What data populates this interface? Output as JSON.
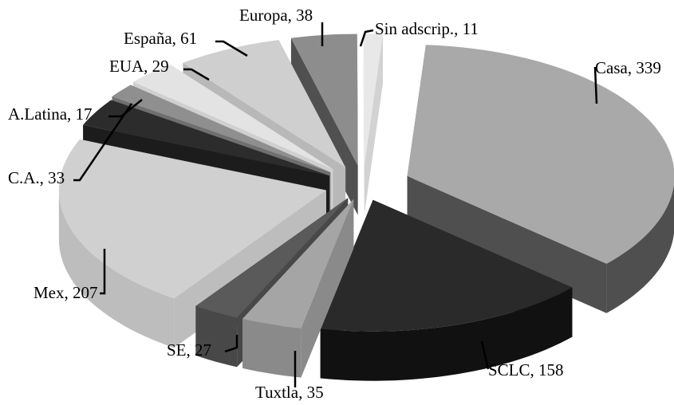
{
  "chart_data": {
    "type": "pie",
    "style": "3d-exploded",
    "legend": "none",
    "slices": [
      {
        "label": "Casa",
        "value": 339,
        "text": "Casa, 339",
        "top_color": "#a9a9a9",
        "side_color": "#4f4f4f"
      },
      {
        "label": "SCLC",
        "value": 158,
        "text": "SCLC, 158",
        "top_color": "#2a2a2a",
        "side_color": "#111111"
      },
      {
        "label": "Tuxtla",
        "value": 35,
        "text": "Tuxtla, 35",
        "top_color": "#a5a5a5",
        "side_color": "#8a8a8a"
      },
      {
        "label": "SE",
        "value": 27,
        "text": "SE, 27",
        "top_color": "#5a5a5a",
        "side_color": "#484848"
      },
      {
        "label": "Mex",
        "value": 207,
        "text": "Mex, 207",
        "top_color": "#d0d0d0",
        "side_color": "#bdbdbd"
      },
      {
        "label": "C.A.",
        "value": 33,
        "text": "C.A., 33",
        "top_color": "#2c2c2c",
        "side_color": "#1c1c1c"
      },
      {
        "label": "A.Latina",
        "value": 17,
        "text": "A.Latina, 17",
        "top_color": "#8f8f8f",
        "side_color": "#6f6f6f"
      },
      {
        "label": "EUA",
        "value": 29,
        "text": "EUA, 29",
        "top_color": "#e3e3e3",
        "side_color": "#cfcfcf"
      },
      {
        "label": "España",
        "value": 61,
        "text": "España, 61",
        "top_color": "#cfcfcf",
        "side_color": "#b8b8b8"
      },
      {
        "label": "Europa",
        "value": 38,
        "text": "Europa, 38",
        "top_color": "#8d8d8d",
        "side_color": "#505050"
      },
      {
        "label": "Sin adscrip.",
        "value": 11,
        "text": "Sin adscrip., 11",
        "top_color": "#e8e8e8",
        "side_color": "#d2d2d2"
      }
    ]
  }
}
